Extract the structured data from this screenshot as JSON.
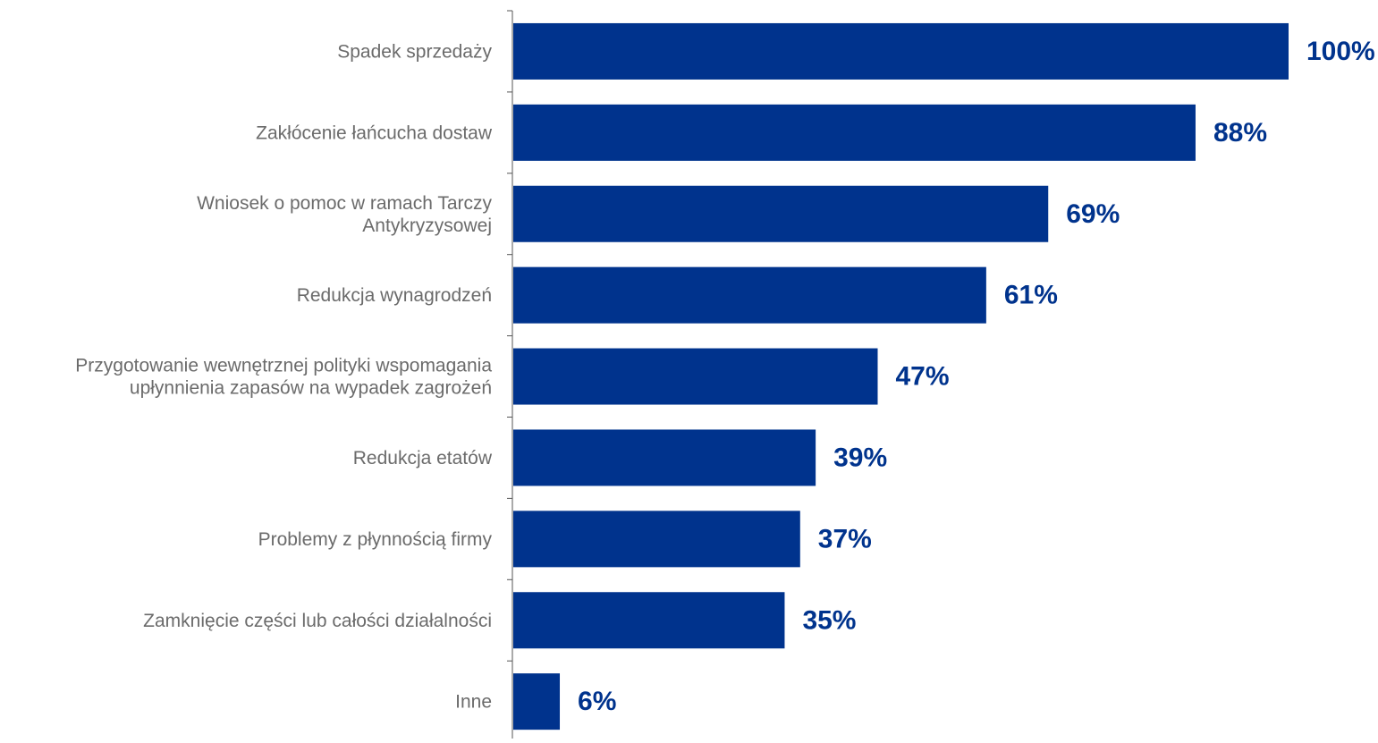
{
  "chart_data": {
    "type": "bar",
    "orientation": "horizontal",
    "categories": [
      [
        "Spadek sprzedaży"
      ],
      [
        "Zakłócenie łańcucha dostaw"
      ],
      [
        "Wniosek o pomoc w ramach Tarczy",
        "Antykryzysowej"
      ],
      [
        "Redukcja wynagrodzeń"
      ],
      [
        "Przygotowanie wewnętrznej polityki wspomagania",
        "upłynnienia zapasów na wypadek zagrożeń"
      ],
      [
        "Redukcja etatów"
      ],
      [
        "Problemy z płynnością firmy"
      ],
      [
        "Zamknięcie części lub całości działalności"
      ],
      [
        "Inne"
      ]
    ],
    "values": [
      100,
      88,
      69,
      61,
      47,
      39,
      37,
      35,
      6
    ],
    "value_labels": [
      "100%",
      "88%",
      "69%",
      "61%",
      "47%",
      "39%",
      "37%",
      "35%",
      "6%"
    ],
    "xlim": [
      0,
      100
    ],
    "grid": false,
    "legend": "none",
    "bar_color": "#00338d",
    "value_label_color": "#00338d",
    "category_label_color": "#6b6b6b",
    "axis_color": "#555555"
  }
}
